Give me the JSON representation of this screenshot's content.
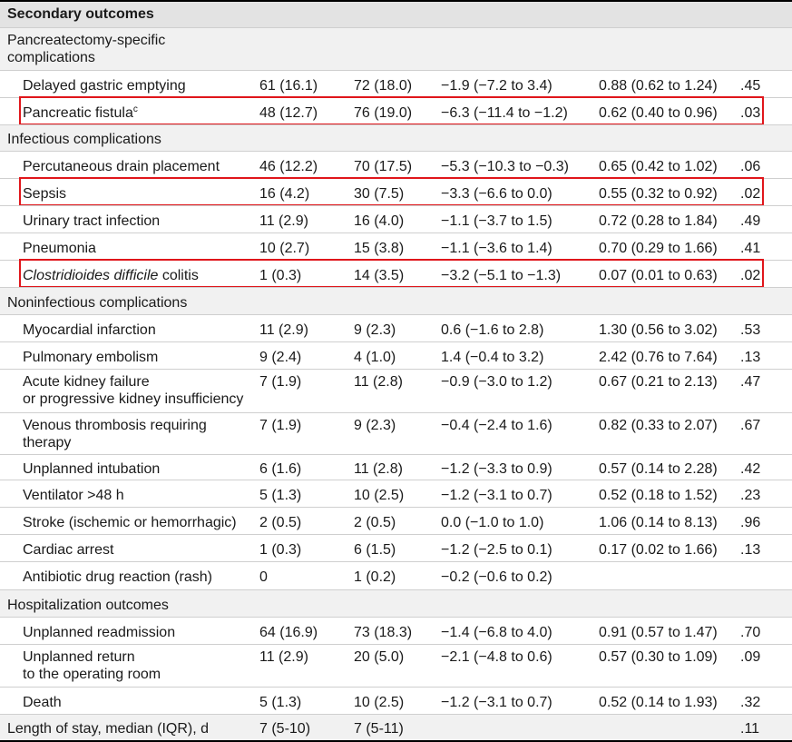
{
  "header": "Secondary outcomes",
  "rows": [
    {
      "type": "section",
      "label": "Pancreatectomy-specific complications",
      "lines": [
        "Pancreatectomy-specific",
        "complications"
      ]
    },
    {
      "type": "item",
      "lines": [
        "Delayed gastric emptying"
      ],
      "v1": "61 (16.1)",
      "v2": "72 (18.0)",
      "v3": "−1.9 (−7.2 to 3.4)",
      "v4": "0.88 (0.62 to 1.24)",
      "p": ".45"
    },
    {
      "type": "item",
      "lines": [
        "Pancreatic fistula"
      ],
      "sup": "c",
      "v1": "48 (12.7)",
      "v2": "76 (19.0)",
      "v3": "−6.3 (−11.4 to −1.2)",
      "v4": "0.62 (0.40 to 0.96)",
      "p": ".03",
      "highlight": true
    },
    {
      "type": "section",
      "lines": [
        "Infectious complications"
      ]
    },
    {
      "type": "item",
      "lines": [
        "Percutaneous drain placement"
      ],
      "v1": "46 (12.2)",
      "v2": "70 (17.5)",
      "v3": "−5.3 (−10.3 to −0.3)",
      "v4": "0.65 (0.42 to 1.02)",
      "p": ".06"
    },
    {
      "type": "item",
      "lines": [
        "Sepsis"
      ],
      "v1": "16 (4.2)",
      "v2": "30 (7.5)",
      "v3": "−3.3 (−6.6 to 0.0)",
      "v4": "0.55 (0.32 to 0.92)",
      "p": ".02",
      "highlight": true
    },
    {
      "type": "item",
      "lines": [
        "Urinary tract infection"
      ],
      "v1": "11 (2.9)",
      "v2": "16 (4.0)",
      "v3": "−1.1 (−3.7 to 1.5)",
      "v4": "0.72 (0.28 to 1.84)",
      "p": ".49"
    },
    {
      "type": "item",
      "lines": [
        "Pneumonia"
      ],
      "v1": "10 (2.7)",
      "v2": "15 (3.8)",
      "v3": "−1.1 (−3.6 to 1.4)",
      "v4": "0.70 (0.29 to 1.66)",
      "p": ".41"
    },
    {
      "type": "item",
      "lines": [
        "Clostridioides difficile colitis"
      ],
      "italic": "Clostridioides difficile",
      "rest": " colitis",
      "v1": "1 (0.3)",
      "v2": "14 (3.5)",
      "v3": "−3.2 (−5.1 to −1.3)",
      "v4": "0.07 (0.01 to 0.63)",
      "p": ".02",
      "highlight": true
    },
    {
      "type": "section",
      "lines": [
        "Noninfectious complications"
      ]
    },
    {
      "type": "item",
      "lines": [
        "Myocardial infarction"
      ],
      "v1": "11 (2.9)",
      "v2": "9 (2.3)",
      "v3": "0.6 (−1.6 to 2.8)",
      "v4": "1.30 (0.56 to 3.02)",
      "p": ".53"
    },
    {
      "type": "item",
      "lines": [
        "Pulmonary embolism"
      ],
      "v1": "9 (2.4)",
      "v2": "4 (1.0)",
      "v3": "1.4 (−0.4 to 3.2)",
      "v4": "2.42 (0.76 to 7.64)",
      "p": ".13"
    },
    {
      "type": "item",
      "lines": [
        "Acute kidney failure",
        "or progressive kidney insufficiency"
      ],
      "v1": "7 (1.9)",
      "v2": "11 (2.8)",
      "v3": "−0.9 (−3.0 to 1.2)",
      "v4": "0.67 (0.21 to 2.13)",
      "p": ".47"
    },
    {
      "type": "item",
      "lines": [
        "Venous thrombosis requiring",
        "therapy"
      ],
      "v1": "7 (1.9)",
      "v2": "9 (2.3)",
      "v3": "−0.4 (−2.4 to 1.6)",
      "v4": "0.82 (0.33 to 2.07)",
      "p": ".67"
    },
    {
      "type": "item",
      "lines": [
        "Unplanned intubation"
      ],
      "v1": "6 (1.6)",
      "v2": "11 (2.8)",
      "v3": "−1.2 (−3.3 to 0.9)",
      "v4": "0.57 (0.14 to 2.28)",
      "p": ".42"
    },
    {
      "type": "item",
      "lines": [
        "Ventilator >48 h"
      ],
      "v1": "5 (1.3)",
      "v2": "10 (2.5)",
      "v3": "−1.2 (−3.1 to 0.7)",
      "v4": "0.52 (0.18 to 1.52)",
      "p": ".23"
    },
    {
      "type": "item",
      "lines": [
        "Stroke (ischemic or hemorrhagic)"
      ],
      "v1": "2 (0.5)",
      "v2": "2 (0.5)",
      "v3": "0.0 (−1.0 to 1.0)",
      "v4": "1.06 (0.14 to 8.13)",
      "p": ".96"
    },
    {
      "type": "item",
      "lines": [
        "Cardiac arrest"
      ],
      "v1": "1 (0.3)",
      "v2": "6 (1.5)",
      "v3": "−1.2 (−2.5 to 0.1)",
      "v4": "0.17 (0.02 to 1.66)",
      "p": ".13"
    },
    {
      "type": "item",
      "lines": [
        "Antibiotic drug reaction (rash)"
      ],
      "v1": "0",
      "v2": "1 (0.2)",
      "v3": "−0.2 (−0.6 to 0.2)",
      "v4": "",
      "p": ""
    },
    {
      "type": "section",
      "lines": [
        "Hospitalization outcomes"
      ]
    },
    {
      "type": "item",
      "lines": [
        "Unplanned readmission"
      ],
      "v1": "64 (16.9)",
      "v2": "73 (18.3)",
      "v3": "−1.4 (−6.8 to 4.0)",
      "v4": "0.91 (0.57 to 1.47)",
      "p": ".70"
    },
    {
      "type": "item",
      "lines": [
        "Unplanned return",
        "to the operating room"
      ],
      "v1": "11 (2.9)",
      "v2": "20 (5.0)",
      "v3": "−2.1 (−4.8 to 0.6)",
      "v4": "0.57 (0.30 to 1.09)",
      "p": ".09"
    },
    {
      "type": "item",
      "lines": [
        "Death"
      ],
      "v1": "5 (1.3)",
      "v2": "10 (2.5)",
      "v3": "−1.2 (−3.1 to 0.7)",
      "v4": "0.52 (0.14 to 1.93)",
      "p": ".32"
    },
    {
      "type": "sectionvals",
      "lines": [
        "Length of stay, median (IQR), d"
      ],
      "v1": "7 (5-10)",
      "v2": "7 (5-11)",
      "v3": "",
      "v4": "",
      "p": ".11"
    }
  ],
  "colors": {
    "highlight": "#e0161b",
    "section_bg": "#f1f1f1",
    "header_bg": "#e3e3e3"
  }
}
